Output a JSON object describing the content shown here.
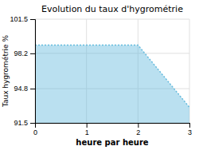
{
  "chart_data": {
    "type": "area",
    "title": "Evolution du taux d'hygrométrie",
    "xlabel": "heure par heure",
    "ylabel": "Taux hygrométrie %",
    "x": [
      0,
      2,
      3
    ],
    "values": [
      99.0,
      99.0,
      93.0
    ],
    "color": "#66bbdd",
    "line_style": "dotted",
    "xlim": [
      0,
      3
    ],
    "ylim": [
      91.5,
      101.5
    ],
    "xticks": [
      0,
      1,
      2,
      3
    ],
    "yticks": [
      91.5,
      94.8,
      98.2,
      101.5
    ],
    "grid": true
  }
}
